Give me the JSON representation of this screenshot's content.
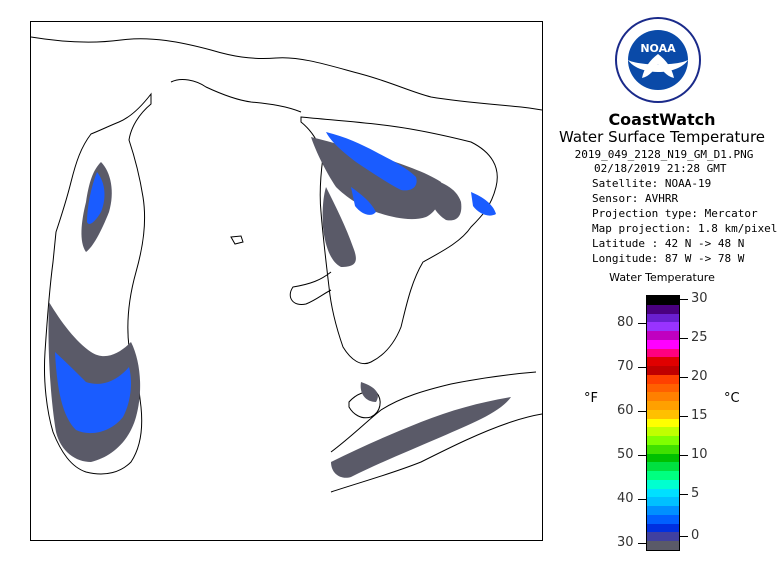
{
  "header": {
    "brand": "CoastWatch",
    "product": "Water Surface Temperature",
    "filename": "2019_049_2128_N19_GM_D1.PNG",
    "datetime": "02/18/2019   21:28 GMT",
    "satellite": "Satellite: NOAA-19",
    "sensor": "Sensor: AVHRR",
    "projection_type": "Projection type:  Mercator",
    "map_projection": "Map projection: 1.8 km/pixel",
    "latitude": "Latitude : 42 N -> 48 N",
    "longitude": "Longitude: 87 W -> 78 W"
  },
  "logo": {
    "text": "NOAA",
    "ring_top": "NATIONAL OCEANIC AND ATMOSPHERIC ADMINISTRATION",
    "ring_bottom": "U.S. DEPARTMENT OF COMMERCE"
  },
  "legend": {
    "title": "Water Temperature",
    "unit_left": "°F",
    "unit_right": "°C",
    "fahrenheit_ticks": [
      "80",
      "70",
      "60",
      "50",
      "40",
      "30"
    ],
    "celsius_ticks": [
      "30",
      "25",
      "20",
      "15",
      "10",
      "5",
      "0"
    ],
    "colors": [
      "#000000",
      "#4a0080",
      "#6a1fd0",
      "#9933ff",
      "#c000c0",
      "#ff00ff",
      "#ff0080",
      "#e00000",
      "#c00000",
      "#ff4000",
      "#ff6000",
      "#ff8000",
      "#ffa000",
      "#ffc000",
      "#ffff00",
      "#c0ff00",
      "#80ff00",
      "#40e000",
      "#00c000",
      "#00e040",
      "#00ff80",
      "#00ffd0",
      "#00e0ff",
      "#00c0ff",
      "#0090ff",
      "#0060ff",
      "#0030e0",
      "#4040a0",
      "#5a5a68"
    ]
  },
  "map": {
    "ice_color": "#5a5a68",
    "water_color": "#1a5cff",
    "coast_color": "#000000"
  }
}
